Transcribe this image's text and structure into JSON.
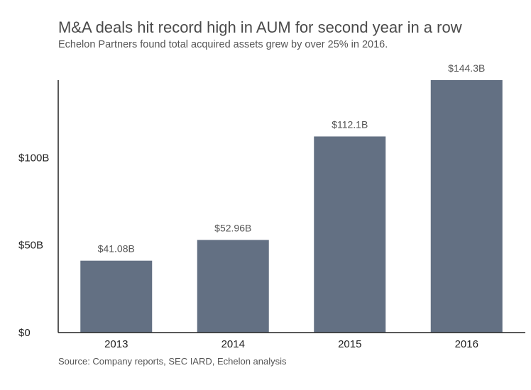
{
  "chart_data": {
    "type": "bar",
    "title": "M&A deals hit record high in AUM for second year in a row",
    "subtitle": "Echelon Partners found total acquired assets grew by over 25% in 2016.",
    "source": "Source: Company reports, SEC IARD, Echelon analysis",
    "categories": [
      "2013",
      "2014",
      "2015",
      "2016"
    ],
    "values": [
      41.08,
      52.96,
      112.1,
      144.3
    ],
    "value_labels": [
      "$41.08B",
      "$52.96B",
      "$112.1B",
      "$144.3B"
    ],
    "ylim": [
      0,
      144.3
    ],
    "yticks": [
      0,
      50,
      100
    ],
    "ytick_labels": [
      "$0",
      "$50B",
      "$100B"
    ],
    "xlabel": "",
    "ylabel": "",
    "bar_color": "#637083",
    "grid": false
  }
}
